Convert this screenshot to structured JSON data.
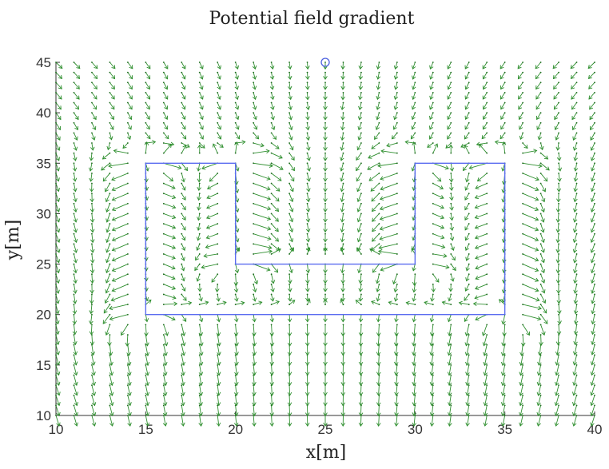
{
  "chart_data": {
    "type": "quiver",
    "title": "Potential field gradient",
    "xlabel": "x[m]",
    "ylabel": "y[m]",
    "xlim": [
      10,
      40
    ],
    "ylim": [
      10,
      45
    ],
    "xticks": [
      10,
      15,
      20,
      25,
      30,
      35,
      40
    ],
    "yticks": [
      10,
      15,
      20,
      25,
      30,
      35,
      40,
      45
    ],
    "grid": false,
    "grid_spacing": 1,
    "goal": {
      "x": 25,
      "y": 45
    },
    "obstacle_polygon": [
      [
        15,
        20
      ],
      [
        15,
        35
      ],
      [
        20,
        35
      ],
      [
        20,
        25
      ],
      [
        30,
        25
      ],
      [
        30,
        35
      ],
      [
        35,
        35
      ],
      [
        35,
        20
      ],
      [
        15,
        20
      ]
    ],
    "colors": {
      "vectors": "#2f8f2f",
      "vector_dots": "#1e6b1e",
      "obstacle": "#5b6cf0",
      "goal": "#4a5fe0",
      "axes": "#333333"
    }
  }
}
